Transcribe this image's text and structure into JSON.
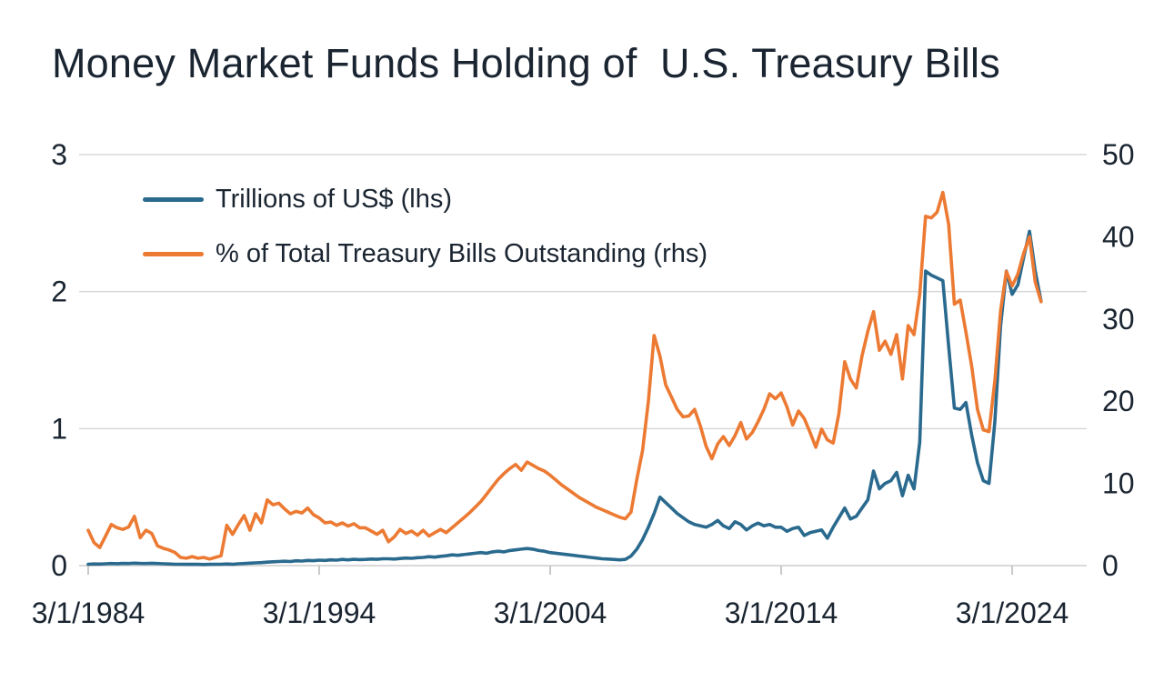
{
  "title": "Money Market Funds Holding of  U.S. Treasury Bills",
  "colors": {
    "background": "#ffffff",
    "text": "#1a2531",
    "gridline": "#d9d9d9",
    "tick_mark": "#c9c9c9",
    "series_trillions": "#2a6a8e",
    "series_percent": "#ec7a33"
  },
  "chart_data": {
    "type": "line",
    "title": "Money Market Funds Holding of  U.S. Treasury Bills",
    "grid": "horizontal gridlines at left-axis integers",
    "legend_position": "top-left inside plot area",
    "x": {
      "start_year": 1984.25,
      "step_years": 0.25,
      "count": 166,
      "note": "quarterly observations from 3/1/1984 to mid-2025"
    },
    "x_axis": {
      "tick_labels": [
        "3/1/1984",
        "3/1/1994",
        "3/1/2004",
        "3/1/2014",
        "3/1/2024"
      ],
      "tick_interval_years": 10
    },
    "left_axis": {
      "range": [
        0,
        3
      ],
      "ticks": [
        3,
        2,
        1,
        0
      ],
      "label": "Trillions of US$"
    },
    "right_axis": {
      "range": [
        0,
        50
      ],
      "ticks": [
        50,
        40,
        30,
        20,
        10,
        0
      ],
      "label": "% of Total Treasury Bills Outstanding"
    },
    "series": [
      {
        "name": "Trillions of US$ (lhs)",
        "axis": "left",
        "color": "#2a6a8e",
        "values": [
          0.01,
          0.012,
          0.011,
          0.013,
          0.015,
          0.014,
          0.016,
          0.015,
          0.018,
          0.016,
          0.015,
          0.017,
          0.015,
          0.013,
          0.012,
          0.01,
          0.01,
          0.009,
          0.01,
          0.009,
          0.008,
          0.009,
          0.01,
          0.01,
          0.012,
          0.01,
          0.013,
          0.015,
          0.018,
          0.02,
          0.022,
          0.025,
          0.028,
          0.03,
          0.032,
          0.03,
          0.035,
          0.033,
          0.038,
          0.036,
          0.04,
          0.038,
          0.042,
          0.04,
          0.045,
          0.042,
          0.046,
          0.044,
          0.045,
          0.048,
          0.046,
          0.05,
          0.05,
          0.048,
          0.052,
          0.055,
          0.053,
          0.058,
          0.06,
          0.065,
          0.062,
          0.068,
          0.072,
          0.078,
          0.075,
          0.08,
          0.085,
          0.09,
          0.095,
          0.09,
          0.1,
          0.105,
          0.1,
          0.11,
          0.115,
          0.12,
          0.125,
          0.12,
          0.11,
          0.105,
          0.095,
          0.09,
          0.085,
          0.08,
          0.075,
          0.07,
          0.065,
          0.06,
          0.055,
          0.05,
          0.048,
          0.045,
          0.042,
          0.045,
          0.07,
          0.12,
          0.19,
          0.28,
          0.38,
          0.5,
          0.46,
          0.42,
          0.38,
          0.35,
          0.32,
          0.3,
          0.29,
          0.28,
          0.3,
          0.33,
          0.29,
          0.27,
          0.32,
          0.3,
          0.26,
          0.29,
          0.31,
          0.29,
          0.3,
          0.28,
          0.28,
          0.25,
          0.27,
          0.28,
          0.22,
          0.24,
          0.25,
          0.26,
          0.2,
          0.28,
          0.35,
          0.42,
          0.34,
          0.36,
          0.42,
          0.48,
          0.69,
          0.56,
          0.6,
          0.62,
          0.68,
          0.51,
          0.66,
          0.56,
          0.9,
          2.15,
          2.12,
          2.1,
          2.08,
          1.6,
          1.15,
          1.14,
          1.19,
          0.95,
          0.75,
          0.62,
          0.6,
          1.05,
          1.75,
          2.15,
          1.98,
          2.05,
          2.25,
          2.44,
          2.15,
          1.93
        ]
      },
      {
        "name": "% of Total Treasury Bills Outstanding (rhs)",
        "axis": "right",
        "color": "#ec7a33",
        "values": [
          4.3,
          2.8,
          2.2,
          3.6,
          5.0,
          4.6,
          4.4,
          4.7,
          6.0,
          3.4,
          4.3,
          3.9,
          2.4,
          2.1,
          1.9,
          1.6,
          1.0,
          0.9,
          1.1,
          0.9,
          1.0,
          0.8,
          1.0,
          1.2,
          4.9,
          3.8,
          5.0,
          6.1,
          4.3,
          6.3,
          5.2,
          8.0,
          7.4,
          7.6,
          6.9,
          6.3,
          6.6,
          6.4,
          7.0,
          6.2,
          5.8,
          5.2,
          5.3,
          4.9,
          5.2,
          4.8,
          5.1,
          4.6,
          4.6,
          4.2,
          3.8,
          4.3,
          2.9,
          3.5,
          4.4,
          3.9,
          4.2,
          3.7,
          4.3,
          3.6,
          4.0,
          4.4,
          4.0,
          4.6,
          5.2,
          5.8,
          6.4,
          7.1,
          7.8,
          8.7,
          9.6,
          10.5,
          11.2,
          11.8,
          12.3,
          11.6,
          12.6,
          12.2,
          11.8,
          11.5,
          11.0,
          10.4,
          9.8,
          9.3,
          8.8,
          8.3,
          7.9,
          7.5,
          7.1,
          6.8,
          6.5,
          6.2,
          5.9,
          5.7,
          6.5,
          10.5,
          14.0,
          20.0,
          28.0,
          25.5,
          22.0,
          20.5,
          19.0,
          18.1,
          18.2,
          19.0,
          17.0,
          14.5,
          13.0,
          14.8,
          15.7,
          14.6,
          15.8,
          17.4,
          15.4,
          16.2,
          17.5,
          19.0,
          20.9,
          20.3,
          21.0,
          19.3,
          17.1,
          18.8,
          17.9,
          16.2,
          14.4,
          16.6,
          15.3,
          14.9,
          18.5,
          24.8,
          22.7,
          21.6,
          25.5,
          28.5,
          30.9,
          26.2,
          27.3,
          25.7,
          28.1,
          22.7,
          29.2,
          28.1,
          33.0,
          42.5,
          42.3,
          43.0,
          45.4,
          41.5,
          31.8,
          32.3,
          28.4,
          24.2,
          19.0,
          16.5,
          16.3,
          22.5,
          31.0,
          35.8,
          34.0,
          35.5,
          38.0,
          40.0,
          34.5,
          32.1
        ]
      }
    ]
  }
}
